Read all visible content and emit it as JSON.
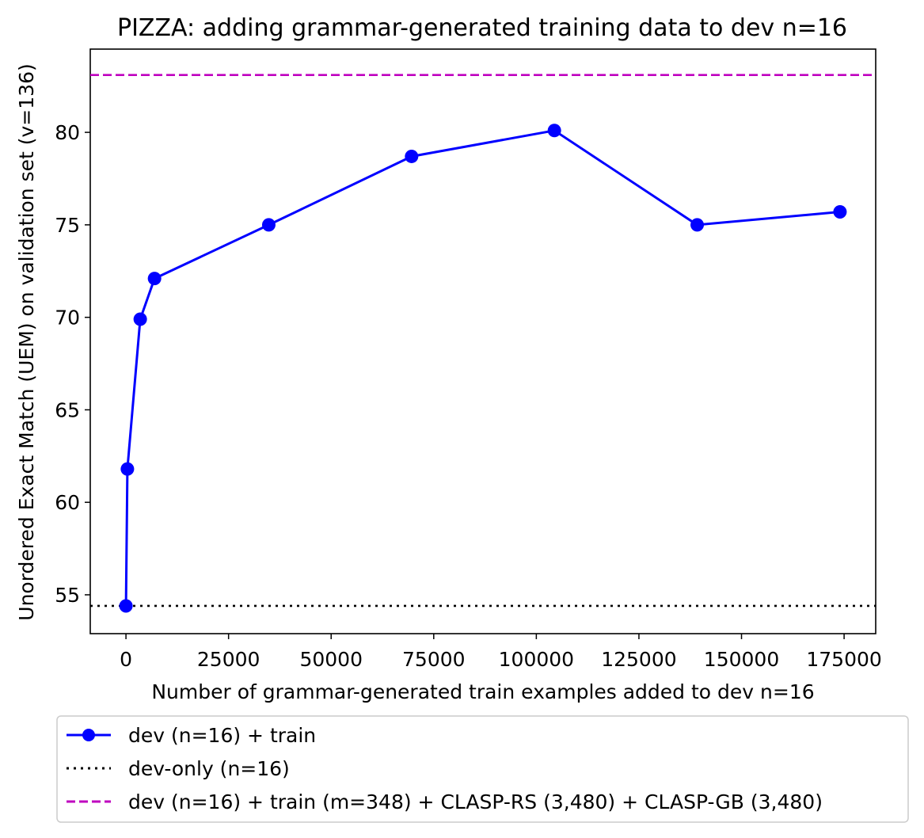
{
  "chart_data": {
    "type": "line",
    "title": "PIZZA: adding grammar-generated training data to dev n=16",
    "xlabel": "Number of grammar-generated train examples added to dev n=16",
    "ylabel": "Unordered Exact Match (UEM) on validation set (v=136)",
    "xlim": [
      -8700,
      182700
    ],
    "ylim": [
      52.9,
      84.5
    ],
    "xticks": [
      0,
      25000,
      50000,
      75000,
      100000,
      125000,
      150000,
      175000
    ],
    "xtick_labels": [
      "0",
      "25000",
      "50000",
      "75000",
      "100000",
      "125000",
      "150000",
      "175000"
    ],
    "yticks": [
      55,
      60,
      65,
      70,
      75,
      80
    ],
    "ytick_labels": [
      "55",
      "60",
      "65",
      "70",
      "75",
      "80"
    ],
    "grid": false,
    "legend_position": "below-plot",
    "series": [
      {
        "name": "dev (n=16) + train",
        "style": "solid-line-circle-markers",
        "color": "#0000ff",
        "x": [
          0,
          348,
          3480,
          6960,
          34800,
          69600,
          104400,
          139200,
          174000
        ],
        "y": [
          54.4,
          61.8,
          69.9,
          72.1,
          75.0,
          78.7,
          80.1,
          75.0,
          75.7
        ]
      },
      {
        "name": "dev-only (n=16)",
        "style": "dotted-hline",
        "color": "#000000",
        "y": 54.4
      },
      {
        "name": "dev (n=16) + train (m=348) + CLASP-RS (3,480) + CLASP-GB (3,480)",
        "style": "dashed-hline",
        "color": "#bf00bf",
        "y": 83.1
      }
    ]
  }
}
